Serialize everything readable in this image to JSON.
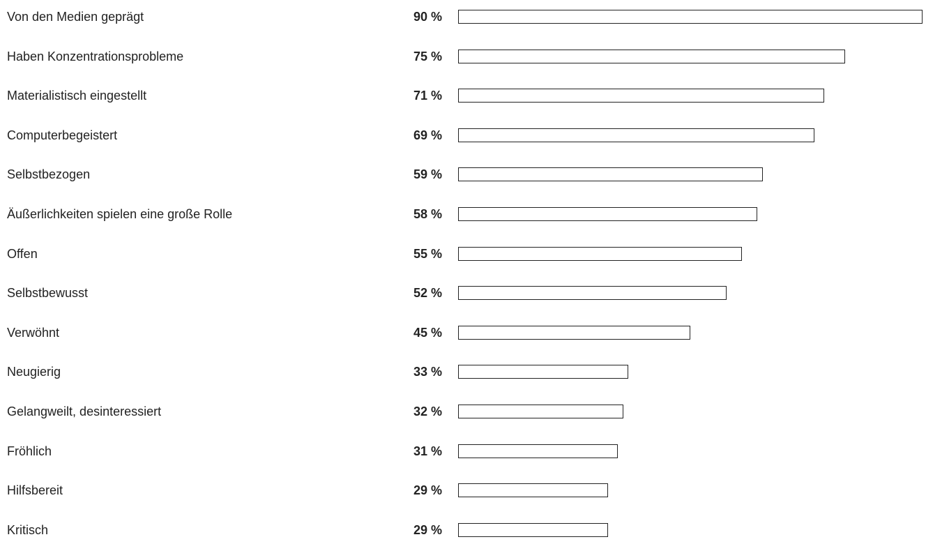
{
  "chart_data": {
    "type": "bar",
    "orientation": "horizontal",
    "categories": [
      "Von den Medien geprägt",
      "Haben Konzentrationsprobleme",
      "Materialistisch eingestellt",
      "Computerbegeistert",
      "Selbstbezogen",
      "Äußerlichkeiten spielen eine große Rolle",
      "Offen",
      "Selbstbewusst",
      "Verwöhnt",
      "Neugierig",
      "Gelangweilt, desinteressiert",
      "Fröhlich",
      "Hilfsbereit",
      "Kritisch"
    ],
    "values": [
      90,
      75,
      71,
      69,
      59,
      58,
      55,
      52,
      45,
      33,
      32,
      31,
      29,
      29
    ],
    "value_labels": [
      "90 %",
      "75 %",
      "71 %",
      "69 %",
      "59 %",
      "58 %",
      "55 %",
      "52 %",
      "45 %",
      "33 %",
      "32 %",
      "31 %",
      "29 %",
      "29 %"
    ],
    "unit": "%",
    "xlim": [
      0,
      90
    ],
    "grid": false,
    "title": "",
    "xlabel": "",
    "ylabel": "",
    "colors": {
      "text": "#222222",
      "bar_outline": "#222222",
      "bar_fill": "#ffffff"
    }
  }
}
